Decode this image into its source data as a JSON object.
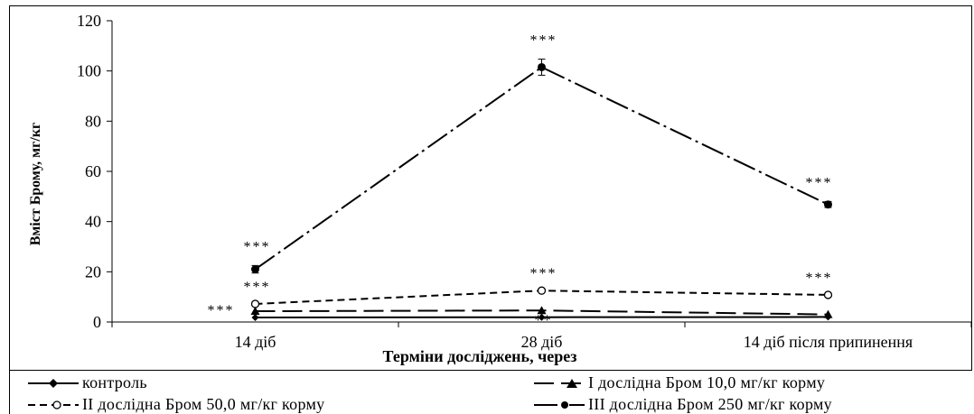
{
  "chart_data": {
    "type": "line",
    "title": "",
    "xlabel": "Терміни досліджень, через",
    "ylabel": "Вміст Брому, мг/кг",
    "ylim": [
      0,
      120
    ],
    "yticks": [
      0,
      20,
      40,
      60,
      80,
      100,
      120
    ],
    "grid": false,
    "legend_position": "bottom",
    "categories": [
      "14 діб",
      "28 діб",
      "14 діб після припинення"
    ],
    "series": [
      {
        "name": "контроль",
        "values": [
          1.8,
          1.9,
          2.0
        ],
        "errors": [
          0,
          0,
          0
        ],
        "marker": "diamond",
        "dash": "solid",
        "annotations": [
          "",
          "",
          ""
        ]
      },
      {
        "name": "I дослідна Бром 10,0 мг/кг корму",
        "values": [
          4.3,
          4.6,
          3.0
        ],
        "errors": [
          0,
          0,
          0
        ],
        "marker": "triangle",
        "dash": "longdash",
        "annotations": [
          "***",
          "**",
          ""
        ]
      },
      {
        "name": "II дослідна Бром 50,0 мг/кг корму",
        "values": [
          7.2,
          12.5,
          10.8
        ],
        "errors": [
          0,
          0,
          0
        ],
        "marker": "open-circle",
        "dash": "shortdash",
        "annotations": [
          "***",
          "***",
          "***"
        ]
      },
      {
        "name": "III дослідна Бром 250 мг/кг корму",
        "values": [
          21.0,
          101.5,
          46.8
        ],
        "errors": [
          1.5,
          3.2,
          1.2
        ],
        "marker": "filled-circle",
        "dash": "dashdot",
        "annotations": [
          "***",
          "***",
          "***"
        ]
      }
    ],
    "colors": {
      "line": "#000000",
      "background": "#ffffff"
    }
  }
}
